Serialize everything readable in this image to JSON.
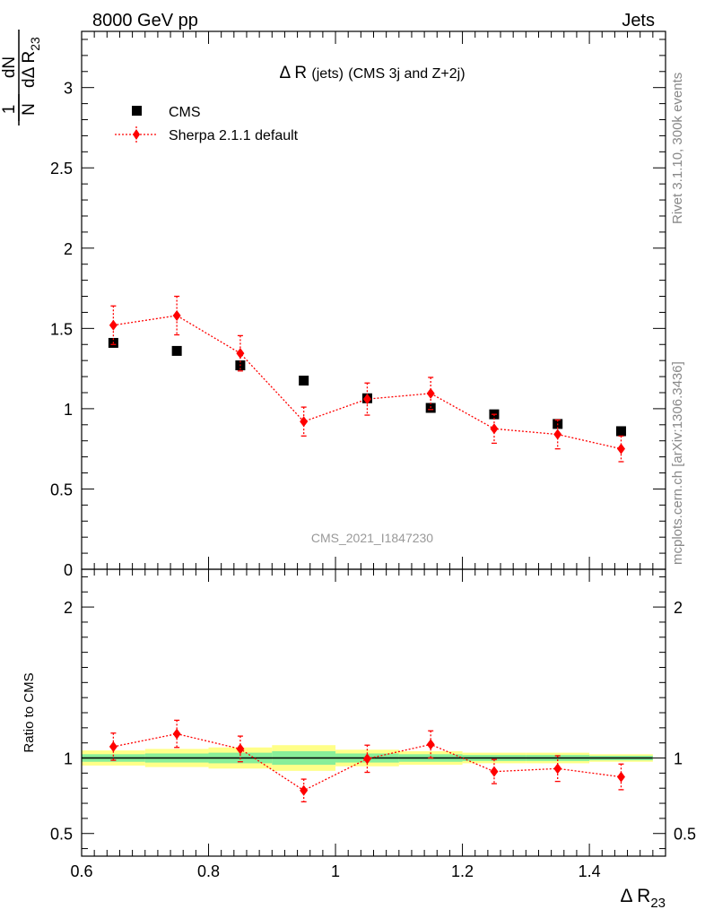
{
  "header": {
    "left": "8000 GeV pp",
    "right": "Jets"
  },
  "side": {
    "rivet": "Rivet 3.1.10,  300k events",
    "site": "mcplots.cern.ch [arXiv:1306.3436]"
  },
  "chart_data": {
    "type": "scatter",
    "title_pre": "Δ R",
    "title_jets": "(jets)",
    "title_post": "(CMS 3j and Z+2j)",
    "watermark": "CMS_2021_I1847230",
    "xlabel": "Δ R",
    "xlabel_sub": "23",
    "ylabel": {
      "frac1_num": "1",
      "frac1_den": "N",
      "frac2_num": "dN",
      "frac2_den": "dΔ R",
      "frac2_den_sub": "23"
    },
    "ratio_ylabel": "Ratio to CMS",
    "xlim": [
      0.6,
      1.52
    ],
    "ylim": [
      0,
      3.35
    ],
    "ratio_ylim": [
      0.35,
      2.25
    ],
    "x_ticks": [
      {
        "v": 0.6,
        "label": "0.6"
      },
      {
        "v": 0.8,
        "label": "0.8"
      },
      {
        "v": 1.0,
        "label": "1"
      },
      {
        "v": 1.2,
        "label": "1.2"
      },
      {
        "v": 1.4,
        "label": "1.4"
      }
    ],
    "y_ticks": [
      {
        "v": 0,
        "label": "0"
      },
      {
        "v": 0.5,
        "label": "0.5"
      },
      {
        "v": 1.0,
        "label": "1"
      },
      {
        "v": 1.5,
        "label": "1.5"
      },
      {
        "v": 2.0,
        "label": "2"
      },
      {
        "v": 2.5,
        "label": "2.5"
      },
      {
        "v": 3.0,
        "label": "3"
      }
    ],
    "ratio_ticks": [
      {
        "v": 0.5,
        "label": "0.5"
      },
      {
        "v": 1.0,
        "label": "1"
      },
      {
        "v": 2.0,
        "label": "2"
      }
    ],
    "x_edges": [
      0.6,
      0.7,
      0.8,
      0.9,
      1.0,
      1.1,
      1.2,
      1.3,
      1.4,
      1.5
    ],
    "x": [
      0.65,
      0.75,
      0.85,
      0.95,
      1.05,
      1.15,
      1.25,
      1.35,
      1.45
    ],
    "series": [
      {
        "name": "CMS",
        "color": "#000000",
        "marker": "square",
        "values": [
          1.41,
          1.36,
          1.27,
          1.175,
          1.065,
          1.005,
          0.965,
          0.905,
          0.86
        ]
      },
      {
        "name": "Sherpa 2.1.1 default",
        "color": "#ff0000",
        "marker": "diamond",
        "values": [
          1.52,
          1.58,
          1.345,
          0.92,
          1.06,
          1.095,
          0.875,
          0.84,
          0.75
        ],
        "errors": [
          0.12,
          0.12,
          0.11,
          0.09,
          0.1,
          0.1,
          0.09,
          0.09,
          0.08
        ],
        "ratio": [
          1.075,
          1.16,
          1.06,
          0.785,
          0.995,
          1.09,
          0.91,
          0.93,
          0.875
        ],
        "ratio_errors": [
          0.09,
          0.09,
          0.085,
          0.075,
          0.09,
          0.09,
          0.08,
          0.085,
          0.085
        ]
      }
    ],
    "ratio_band": {
      "green": [
        0.025,
        0.03,
        0.035,
        0.045,
        0.03,
        0.025,
        0.02,
        0.02,
        0.015
      ],
      "yellow": [
        0.05,
        0.06,
        0.07,
        0.085,
        0.055,
        0.045,
        0.035,
        0.035,
        0.025
      ]
    }
  }
}
